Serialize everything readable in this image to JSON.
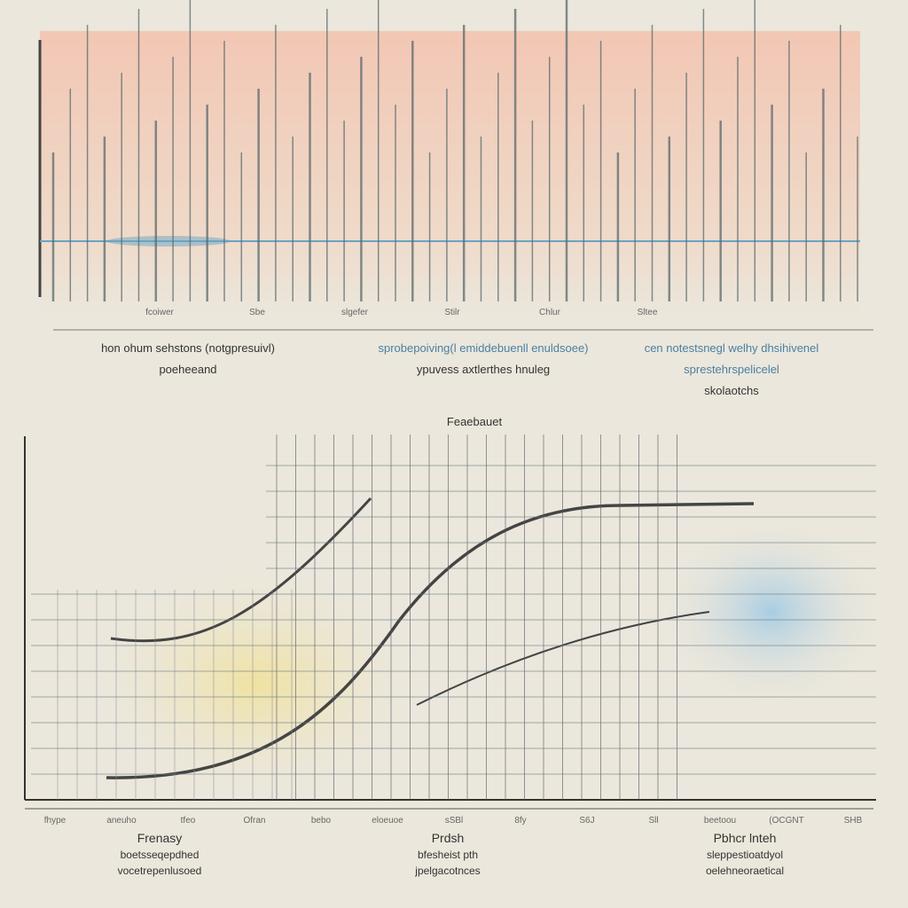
{
  "top": {
    "tick_labels": [
      "fcoiwer",
      "Sbe",
      "slgefer",
      "Stilr",
      "Chlur",
      "Sltee"
    ],
    "captions": [
      {
        "lines": [
          "hon ohum sehstons (notgpresuivl)",
          "poeheeand"
        ]
      },
      {
        "lines": [
          "sprobepoiving(l emiddebuenll enuldsoee)",
          "ypuvess axtlerthes hnuleg"
        ]
      },
      {
        "lines": [
          "cen notestsnegl welhy dhsihivenel",
          "sprestehrspelicelel",
          "skolaotchs"
        ]
      }
    ]
  },
  "bottom": {
    "title": "Feaebauet",
    "tick_labels": [
      "fhype",
      "aneuho",
      "tfeo",
      "Ofran",
      "bebo",
      "eloeuoe",
      "sSBl",
      "8fy",
      "S6J",
      "Sll",
      "beetoou",
      "(OCGNT",
      "SHB"
    ],
    "captions": [
      {
        "lines": [
          "Frenasy",
          "boetsseqepdhed",
          "vocetrepenlusoed"
        ]
      },
      {
        "lines": [
          "Prdsh",
          "bfesheist pth",
          "jpelgacotnces"
        ]
      },
      {
        "lines": [
          "Pbhcr lnteh",
          "sleppestioatdyol",
          "oelehneoraetical"
        ]
      }
    ]
  }
}
